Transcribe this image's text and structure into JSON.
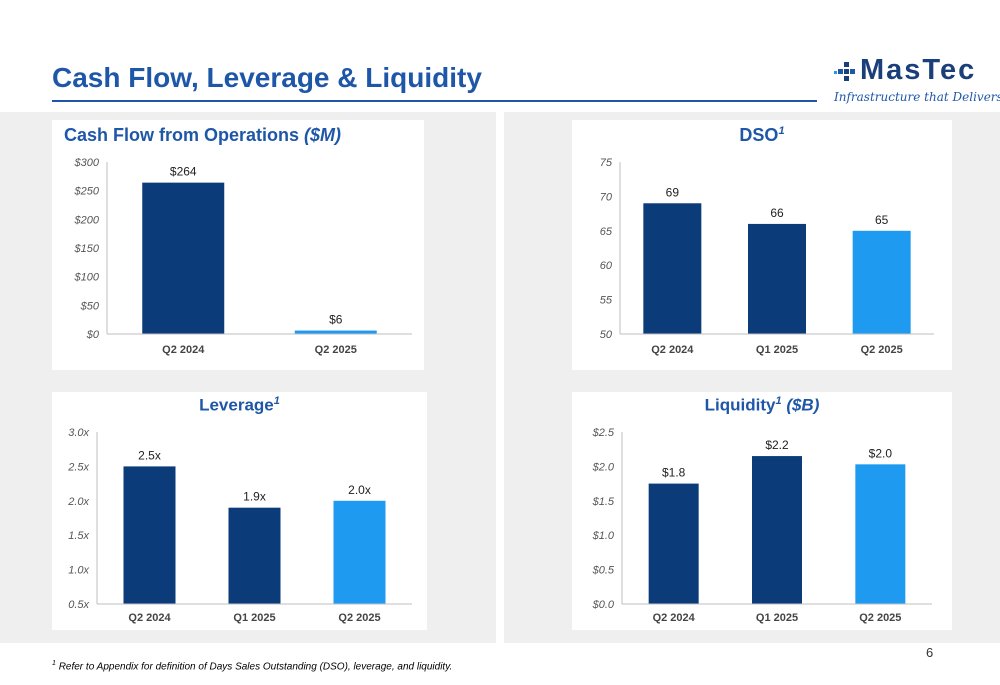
{
  "header": {
    "title": "Cash Flow, Leverage & Liquidity",
    "logo_text": "MasTec",
    "logo_tagline": "Infrastructure that Delivers",
    "logo_icon": "mastec-cross-icon"
  },
  "footnote": {
    "marker": "1",
    "text": "Refer to Appendix for definition of Days Sales Outstanding (DSO), leverage, and liquidity."
  },
  "page_number": "6",
  "colors": {
    "title_blue": "#1f57a8",
    "dark_bar": "#0b3b78",
    "light_bar": "#1e9bf0",
    "panel_bg": "#efefef"
  },
  "chart_data": [
    {
      "id": "cfo",
      "type": "bar",
      "title": "Cash Flow from Operations",
      "title_unit": "($M)",
      "categories": [
        "Q2 2024",
        "Q2 2025"
      ],
      "values": [
        264,
        6
      ],
      "labels": [
        "$264",
        "$6"
      ],
      "highlight": [
        false,
        true
      ],
      "ylim": [
        0,
        300
      ],
      "yticks": [
        0,
        50,
        100,
        150,
        200,
        250,
        300
      ],
      "ytick_labels": [
        "$0",
        "$50",
        "$100",
        "$150",
        "$200",
        "$250",
        "$300"
      ]
    },
    {
      "id": "dso",
      "type": "bar",
      "title": "DSO",
      "title_sup": "1",
      "categories": [
        "Q2 2024",
        "Q1 2025",
        "Q2 2025"
      ],
      "values": [
        69,
        66,
        65
      ],
      "labels": [
        "69",
        "66",
        "65"
      ],
      "highlight": [
        false,
        false,
        true
      ],
      "ylim": [
        50,
        75
      ],
      "yticks": [
        50,
        55,
        60,
        65,
        70,
        75
      ],
      "ytick_labels": [
        "50",
        "55",
        "60",
        "65",
        "70",
        "75"
      ]
    },
    {
      "id": "leverage",
      "type": "bar",
      "title": "Leverage",
      "title_sup": "1",
      "categories": [
        "Q2 2024",
        "Q1 2025",
        "Q2 2025"
      ],
      "values": [
        2.5,
        1.9,
        2.0
      ],
      "labels": [
        "2.5x",
        "1.9x",
        "2.0x"
      ],
      "highlight": [
        false,
        false,
        true
      ],
      "ylim": [
        0.5,
        3.0
      ],
      "yticks": [
        0.5,
        1.0,
        1.5,
        2.0,
        2.5,
        3.0
      ],
      "ytick_labels": [
        "0.5x",
        "1.0x",
        "1.5x",
        "2.0x",
        "2.5x",
        "3.0x"
      ]
    },
    {
      "id": "liquidity",
      "type": "bar",
      "title": "Liquidity",
      "title_sup": "1",
      "title_unit": "($B)",
      "categories": [
        "Q2 2024",
        "Q1 2025",
        "Q2 2025"
      ],
      "values": [
        1.75,
        2.15,
        2.03
      ],
      "labels": [
        "$1.8",
        "$2.2",
        "$2.0"
      ],
      "highlight": [
        false,
        false,
        true
      ],
      "ylim": [
        0,
        2.5
      ],
      "yticks": [
        0,
        0.5,
        1.0,
        1.5,
        2.0,
        2.5
      ],
      "ytick_labels": [
        "$0.0",
        "$0.5",
        "$1.0",
        "$1.5",
        "$2.0",
        "$2.5"
      ]
    }
  ]
}
